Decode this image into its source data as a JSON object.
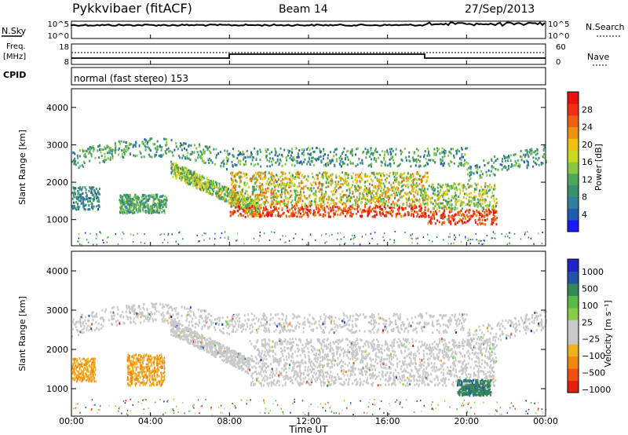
{
  "header": {
    "station": "Pykkvibaer (fitACF)",
    "beam": "Beam 14",
    "date": "27/Sep/2013"
  },
  "nsky_panel": {
    "left_label": "N.Sky",
    "left_ticks": [
      "10^5",
      "10^0"
    ],
    "right_ticks": [
      "10^5",
      "10^0"
    ],
    "right_label": "N.Search"
  },
  "freq_panel": {
    "label_line1": "Freq.",
    "label_line2": "[MHz]",
    "left_ticks": [
      "18",
      "8"
    ],
    "right_ticks": [
      "60",
      "0"
    ],
    "right_label": "Nave"
  },
  "cpid_panel": {
    "label": "CPID",
    "text": "normal (fast stereo) 153"
  },
  "x_axis": {
    "ticks": [
      "00:00",
      "04:00",
      "08:00",
      "12:00",
      "16:00",
      "20:00",
      "00:00"
    ],
    "label": "Time UT"
  },
  "colors": {
    "power_scale": [
      "#1a1aff",
      "#1f5bb0",
      "#2f7fa0",
      "#3a8f6e",
      "#4aa85a",
      "#88c840",
      "#c8d820",
      "#f0c010",
      "#f09010",
      "#f06010",
      "#f03010",
      "#e81010"
    ],
    "velocity_scale": [
      "#2222cc",
      "#2255aa",
      "#338855",
      "#55bb44",
      "#88cc44",
      "#c8c8c8",
      "#c8c8c8",
      "#f0b020",
      "#f08810",
      "#f05010",
      "#e02010"
    ]
  },
  "chart_data": [
    {
      "type": "heatmap",
      "name": "power",
      "xlabel": "Time UT",
      "ylabel": "Slant Range [km]",
      "x_ticks": [
        "00:00",
        "04:00",
        "08:00",
        "12:00",
        "16:00",
        "20:00",
        "00:00"
      ],
      "xlim_hours": [
        0,
        24
      ],
      "ylim": [
        300,
        4500
      ],
      "y_ticks": [
        1000,
        2000,
        3000,
        4000
      ],
      "colorbar_label": "Power [dB]",
      "colorbar_ticks": [
        4,
        8,
        12,
        16,
        20,
        24,
        28
      ],
      "colorbar_range": [
        0,
        32
      ],
      "scatter_bands": [
        {
          "t0": 0,
          "t1": 24,
          "r0": 2450,
          "r1": 3150,
          "values_dB": [
            4,
            14
          ],
          "note": "upper band"
        },
        {
          "t0": 8,
          "t1": 18,
          "r0": 1050,
          "r1": 1400,
          "values_dB": [
            18,
            32
          ]
        },
        {
          "t0": 18,
          "t1": 21.5,
          "r0": 900,
          "r1": 1300,
          "values_dB": [
            16,
            30
          ]
        },
        {
          "t0": 2.5,
          "t1": 4.5,
          "r0": 1200,
          "r1": 1700,
          "values_dB": [
            6,
            16
          ]
        }
      ]
    },
    {
      "type": "heatmap",
      "name": "velocity",
      "xlabel": "Time UT",
      "ylabel": "Slant Range [km]",
      "x_ticks": [
        "00:00",
        "04:00",
        "08:00",
        "12:00",
        "16:00",
        "20:00",
        "00:00"
      ],
      "xlim_hours": [
        0,
        24
      ],
      "ylim": [
        300,
        4500
      ],
      "y_ticks": [
        1000,
        2000,
        3000,
        4000
      ],
      "colorbar_label": "Velocity [m s⁻¹]",
      "colorbar_ticks": [
        "1000",
        "500",
        "100",
        "25",
        "−25",
        "−100",
        "−500",
        "−1000"
      ],
      "regions": [
        {
          "t0": 0,
          "t1": 1.2,
          "r0": 1200,
          "r1": 1800,
          "velocity": "-100 to -500"
        },
        {
          "t0": 2.8,
          "t1": 4.7,
          "r0": 1100,
          "r1": 1900,
          "velocity": "-100 to -500"
        },
        {
          "t0": 19.5,
          "t1": 21.2,
          "r0": 800,
          "r1": 1300,
          "velocity": "100 to 500"
        }
      ]
    }
  ]
}
